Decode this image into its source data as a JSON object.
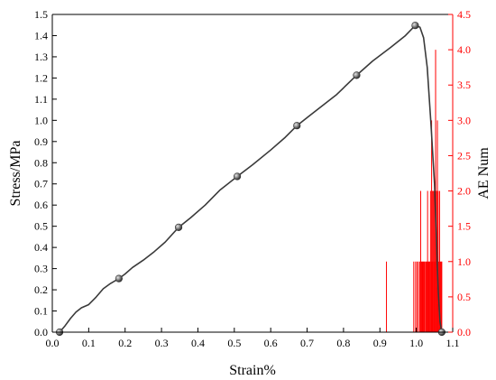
{
  "chart_data": {
    "type": "line",
    "xlabel": "Strain%",
    "ylabel_left": "Stress/MPa",
    "ylabel_right": "AE Num",
    "xlim": [
      0.0,
      1.1
    ],
    "ylim_left": [
      0.0,
      1.5
    ],
    "ylim_right": [
      0.0,
      4.5
    ],
    "x_ticks": [
      "0.0",
      "0.1",
      "0.2",
      "0.3",
      "0.4",
      "0.5",
      "0.6",
      "0.7",
      "0.8",
      "0.9",
      "1.0",
      "1.1"
    ],
    "y_left_ticks": [
      "0.0",
      "0.1",
      "0.2",
      "0.3",
      "0.4",
      "0.5",
      "0.6",
      "0.7",
      "0.8",
      "0.9",
      "1.0",
      "1.1",
      "1.2",
      "1.3",
      "1.4",
      "1.5"
    ],
    "y_right_ticks": [
      "0.0",
      "0.5",
      "1.0",
      "1.5",
      "2.0",
      "2.5",
      "3.0",
      "3.5",
      "4.0",
      "4.5"
    ],
    "colors": {
      "stress": "#3a3a3a",
      "ae": "#ff0000",
      "axis_right": "#ff0000",
      "axis_left": "#000000"
    },
    "grid": false,
    "series": [
      {
        "axis": "left",
        "style": "line",
        "points": [
          [
            0.02,
            0.0
          ],
          [
            0.035,
            0.03
          ],
          [
            0.05,
            0.065
          ],
          [
            0.065,
            0.095
          ],
          [
            0.08,
            0.115
          ],
          [
            0.1,
            0.13
          ],
          [
            0.12,
            0.165
          ],
          [
            0.14,
            0.205
          ],
          [
            0.16,
            0.23
          ],
          [
            0.183,
            0.253
          ],
          [
            0.2,
            0.275
          ],
          [
            0.22,
            0.305
          ],
          [
            0.25,
            0.34
          ],
          [
            0.28,
            0.38
          ],
          [
            0.31,
            0.425
          ],
          [
            0.347,
            0.495
          ],
          [
            0.38,
            0.54
          ],
          [
            0.42,
            0.6
          ],
          [
            0.46,
            0.67
          ],
          [
            0.508,
            0.735
          ],
          [
            0.55,
            0.79
          ],
          [
            0.6,
            0.86
          ],
          [
            0.64,
            0.92
          ],
          [
            0.672,
            0.975
          ],
          [
            0.72,
            1.04
          ],
          [
            0.78,
            1.12
          ],
          [
            0.836,
            1.213
          ],
          [
            0.88,
            1.28
          ],
          [
            0.93,
            1.345
          ],
          [
            0.97,
            1.4
          ],
          [
            0.997,
            1.448
          ],
          [
            1.01,
            1.44
          ],
          [
            1.02,
            1.39
          ],
          [
            1.03,
            1.25
          ],
          [
            1.04,
            0.99
          ],
          [
            1.05,
            0.7
          ],
          [
            1.055,
            0.45
          ],
          [
            1.06,
            0.2
          ],
          [
            1.065,
            0.05
          ],
          [
            1.07,
            0.0
          ]
        ]
      },
      {
        "axis": "left",
        "style": "markers",
        "points": [
          [
            0.02,
            0.0
          ],
          [
            0.183,
            0.253
          ],
          [
            0.347,
            0.495
          ],
          [
            0.508,
            0.735
          ],
          [
            0.672,
            0.975
          ],
          [
            0.836,
            1.213
          ],
          [
            0.997,
            1.448
          ],
          [
            1.07,
            0.0
          ]
        ]
      },
      {
        "axis": "right",
        "style": "bars",
        "points": [
          [
            0.918,
            1
          ],
          [
            0.993,
            1
          ],
          [
            0.998,
            1
          ],
          [
            1.002,
            1
          ],
          [
            1.006,
            1
          ],
          [
            1.01,
            1
          ],
          [
            1.012,
            2
          ],
          [
            1.014,
            1
          ],
          [
            1.016,
            1
          ],
          [
            1.018,
            1
          ],
          [
            1.02,
            1
          ],
          [
            1.022,
            1
          ],
          [
            1.025,
            1
          ],
          [
            1.027,
            1
          ],
          [
            1.029,
            1
          ],
          [
            1.031,
            2
          ],
          [
            1.033,
            1
          ],
          [
            1.035,
            1
          ],
          [
            1.037,
            1
          ],
          [
            1.039,
            2
          ],
          [
            1.041,
            1
          ],
          [
            1.042,
            3
          ],
          [
            1.044,
            2
          ],
          [
            1.045,
            1
          ],
          [
            1.047,
            2
          ],
          [
            1.049,
            2
          ],
          [
            1.05,
            1
          ],
          [
            1.052,
            2
          ],
          [
            1.053,
            4
          ],
          [
            1.055,
            2
          ],
          [
            1.057,
            1
          ],
          [
            1.058,
            3
          ],
          [
            1.06,
            2
          ],
          [
            1.062,
            1
          ],
          [
            1.064,
            2
          ],
          [
            1.066,
            1
          ],
          [
            1.068,
            1
          ],
          [
            1.07,
            1
          ]
        ]
      }
    ]
  }
}
